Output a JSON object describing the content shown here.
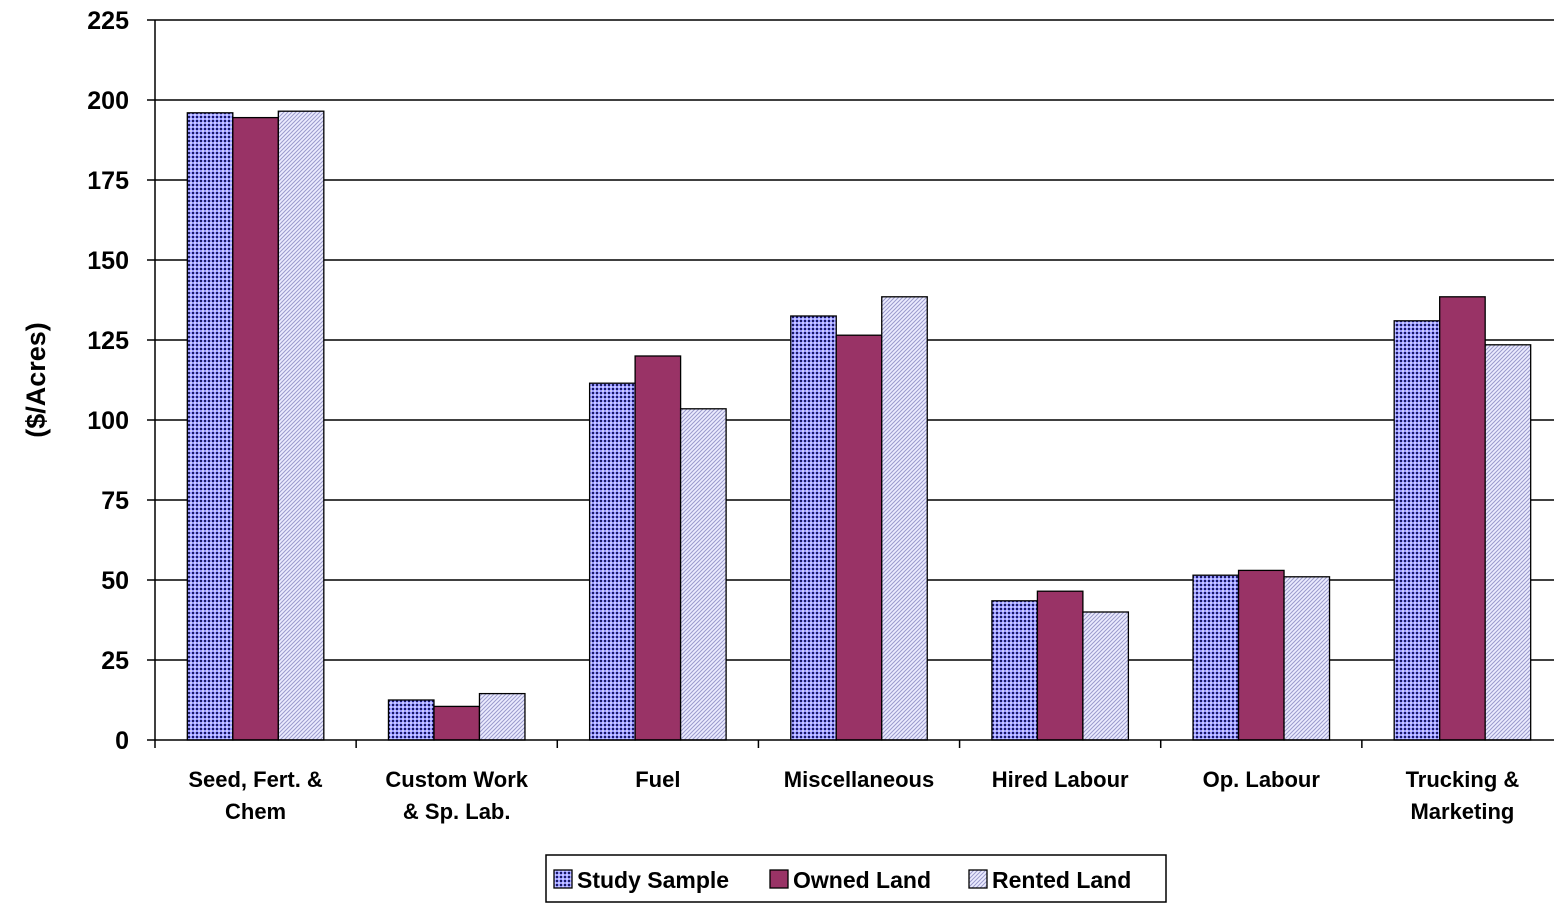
{
  "chart_data": {
    "type": "bar",
    "title": "",
    "xlabel": "",
    "ylabel": "($/Acres)",
    "ylim": [
      0,
      225
    ],
    "yticks": [
      0,
      25,
      50,
      75,
      100,
      125,
      150,
      175,
      200,
      225
    ],
    "grid": true,
    "legend_position": "bottom",
    "categories": [
      [
        "Seed, Fert. &",
        "Chem"
      ],
      [
        "Custom Work",
        "& Sp. Lab."
      ],
      [
        "Fuel"
      ],
      [
        "Miscellaneous"
      ],
      [
        "Hired Labour"
      ],
      [
        "Op. Labour"
      ],
      [
        "Trucking &",
        "Marketing"
      ]
    ],
    "series": [
      {
        "name": "Study Sample",
        "values": [
          196,
          12.5,
          111.5,
          132.5,
          43.5,
          51.5,
          131
        ],
        "color": "#9999ff",
        "pattern": "dots"
      },
      {
        "name": "Owned Land",
        "values": [
          194.5,
          10.5,
          120,
          126.5,
          46.5,
          53,
          138.5
        ],
        "color": "#993366",
        "pattern": "solid"
      },
      {
        "name": "Rented Land",
        "values": [
          196.5,
          14.5,
          103.5,
          138.5,
          40,
          51,
          123.5
        ],
        "color": "#ccccff",
        "pattern": "diagonal"
      }
    ]
  }
}
